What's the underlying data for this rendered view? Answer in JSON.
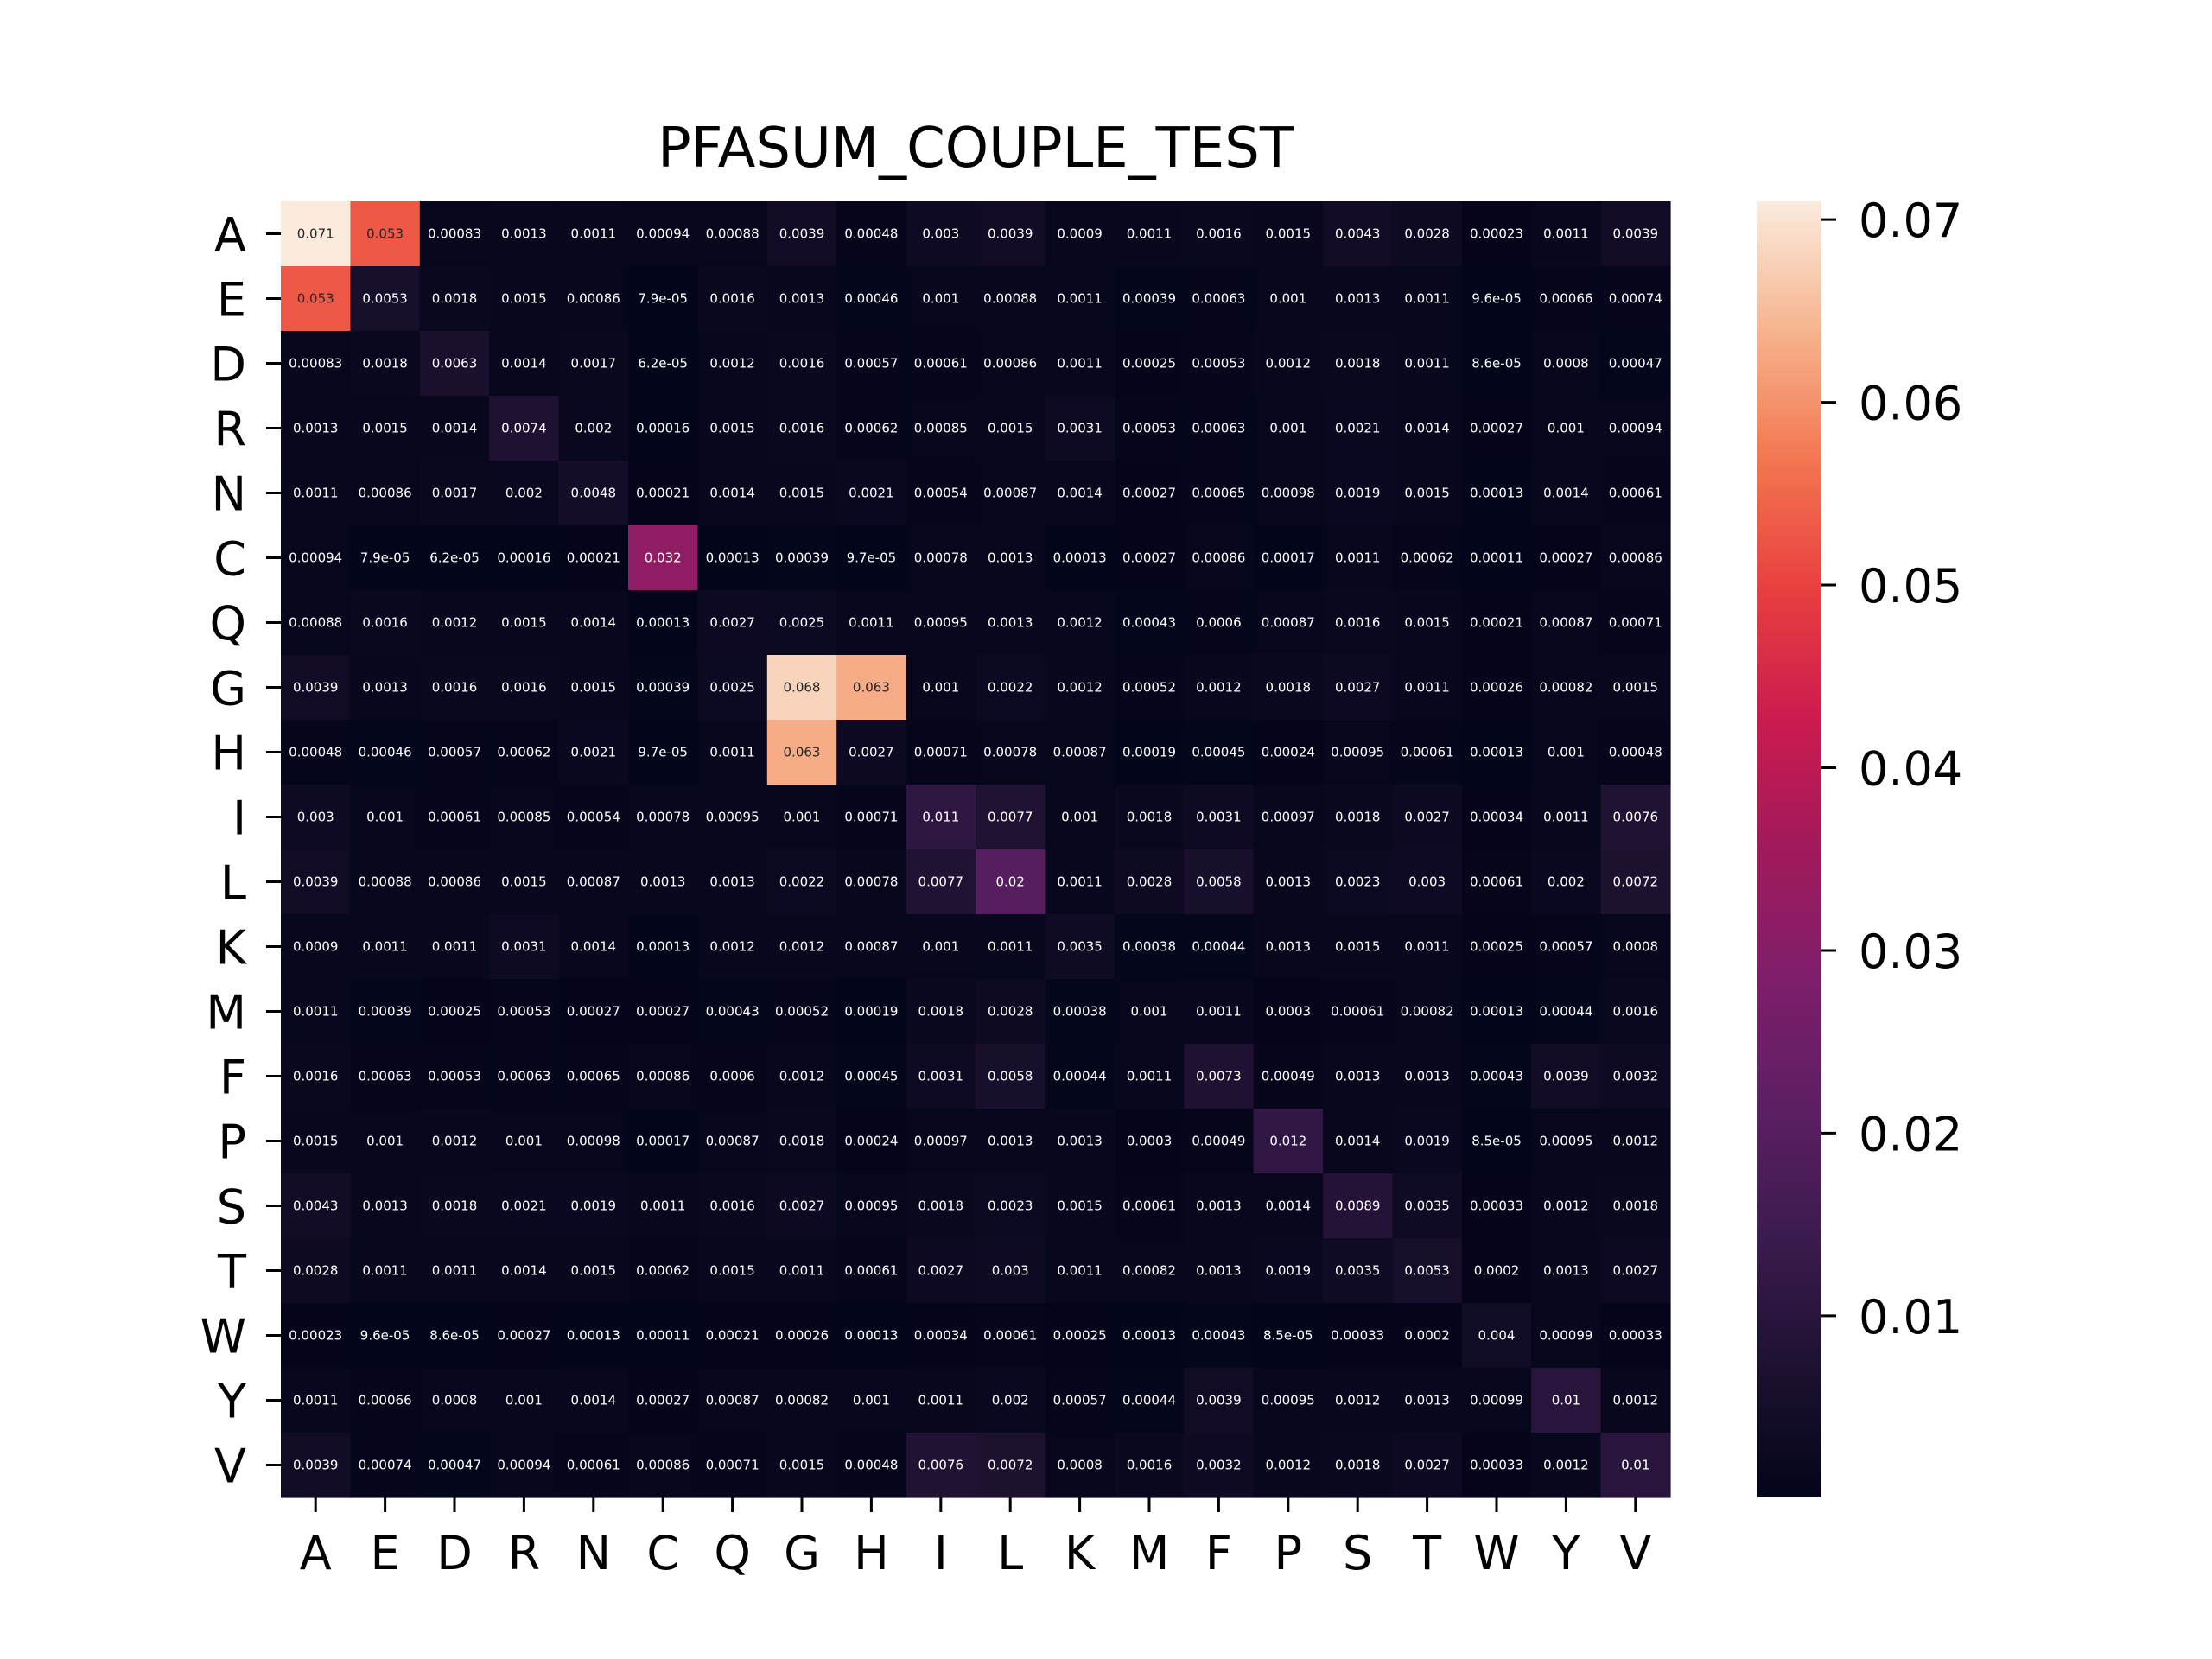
{
  "chart_data": {
    "type": "heatmap",
    "title": "PFASUM_COUPLE_TEST",
    "xlabel": "",
    "ylabel": "",
    "x_categories": [
      "A",
      "E",
      "D",
      "R",
      "N",
      "C",
      "Q",
      "G",
      "H",
      "I",
      "L",
      "K",
      "M",
      "F",
      "P",
      "S",
      "T",
      "W",
      "Y",
      "V"
    ],
    "y_categories": [
      "A",
      "E",
      "D",
      "R",
      "N",
      "C",
      "Q",
      "G",
      "H",
      "I",
      "L",
      "K",
      "M",
      "F",
      "P",
      "S",
      "T",
      "W",
      "Y",
      "V"
    ],
    "colorbar": {
      "colormap": "rocket",
      "ticks": [
        "0.01",
        "0.02",
        "0.03",
        "0.04",
        "0.05",
        "0.06",
        "0.07"
      ],
      "tick_values": [
        0.01,
        0.02,
        0.03,
        0.04,
        0.05,
        0.06,
        0.07
      ],
      "range": [
        6.2e-05,
        0.071
      ]
    },
    "values": [
      [
        "0.071",
        "0.053",
        "0.00083",
        "0.0013",
        "0.0011",
        "0.00094",
        "0.00088",
        "0.0039",
        "0.00048",
        "0.003",
        "0.0039",
        "0.0009",
        "0.0011",
        "0.0016",
        "0.0015",
        "0.0043",
        "0.0028",
        "0.00023",
        "0.0011",
        "0.0039"
      ],
      [
        "0.053",
        "0.0053",
        "0.0018",
        "0.0015",
        "0.00086",
        "7.9e-05",
        "0.0016",
        "0.0013",
        "0.00046",
        "0.001",
        "0.00088",
        "0.0011",
        "0.00039",
        "0.00063",
        "0.001",
        "0.0013",
        "0.0011",
        "9.6e-05",
        "0.00066",
        "0.00074"
      ],
      [
        "0.00083",
        "0.0018",
        "0.0063",
        "0.0014",
        "0.0017",
        "6.2e-05",
        "0.0012",
        "0.0016",
        "0.00057",
        "0.00061",
        "0.00086",
        "0.0011",
        "0.00025",
        "0.00053",
        "0.0012",
        "0.0018",
        "0.0011",
        "8.6e-05",
        "0.0008",
        "0.00047"
      ],
      [
        "0.0013",
        "0.0015",
        "0.0014",
        "0.0074",
        "0.002",
        "0.00016",
        "0.0015",
        "0.0016",
        "0.00062",
        "0.00085",
        "0.0015",
        "0.0031",
        "0.00053",
        "0.00063",
        "0.001",
        "0.0021",
        "0.0014",
        "0.00027",
        "0.001",
        "0.00094"
      ],
      [
        "0.0011",
        "0.00086",
        "0.0017",
        "0.002",
        "0.0048",
        "0.00021",
        "0.0014",
        "0.0015",
        "0.0021",
        "0.00054",
        "0.00087",
        "0.0014",
        "0.00027",
        "0.00065",
        "0.00098",
        "0.0019",
        "0.0015",
        "0.00013",
        "0.0014",
        "0.00061"
      ],
      [
        "0.00094",
        "7.9e-05",
        "6.2e-05",
        "0.00016",
        "0.00021",
        "0.032",
        "0.00013",
        "0.00039",
        "9.7e-05",
        "0.00078",
        "0.0013",
        "0.00013",
        "0.00027",
        "0.00086",
        "0.00017",
        "0.0011",
        "0.00062",
        "0.00011",
        "0.00027",
        "0.00086"
      ],
      [
        "0.00088",
        "0.0016",
        "0.0012",
        "0.0015",
        "0.0014",
        "0.00013",
        "0.0027",
        "0.0025",
        "0.0011",
        "0.00095",
        "0.0013",
        "0.0012",
        "0.00043",
        "0.0006",
        "0.00087",
        "0.0016",
        "0.0015",
        "0.00021",
        "0.00087",
        "0.00071"
      ],
      [
        "0.0039",
        "0.0013",
        "0.0016",
        "0.0016",
        "0.0015",
        "0.00039",
        "0.0025",
        "0.068",
        "0.063",
        "0.001",
        "0.0022",
        "0.0012",
        "0.00052",
        "0.0012",
        "0.0018",
        "0.0027",
        "0.0011",
        "0.00026",
        "0.00082",
        "0.0015"
      ],
      [
        "0.00048",
        "0.00046",
        "0.00057",
        "0.00062",
        "0.0021",
        "9.7e-05",
        "0.0011",
        "0.063",
        "0.0027",
        "0.00071",
        "0.00078",
        "0.00087",
        "0.00019",
        "0.00045",
        "0.00024",
        "0.00095",
        "0.00061",
        "0.00013",
        "0.001",
        "0.00048"
      ],
      [
        "0.003",
        "0.001",
        "0.00061",
        "0.00085",
        "0.00054",
        "0.00078",
        "0.00095",
        "0.001",
        "0.00071",
        "0.011",
        "0.0077",
        "0.001",
        "0.0018",
        "0.0031",
        "0.00097",
        "0.0018",
        "0.0027",
        "0.00034",
        "0.0011",
        "0.0076"
      ],
      [
        "0.0039",
        "0.00088",
        "0.00086",
        "0.0015",
        "0.00087",
        "0.0013",
        "0.0013",
        "0.0022",
        "0.00078",
        "0.0077",
        "0.02",
        "0.0011",
        "0.0028",
        "0.0058",
        "0.0013",
        "0.0023",
        "0.003",
        "0.00061",
        "0.002",
        "0.0072"
      ],
      [
        "0.0009",
        "0.0011",
        "0.0011",
        "0.0031",
        "0.0014",
        "0.00013",
        "0.0012",
        "0.0012",
        "0.00087",
        "0.001",
        "0.0011",
        "0.0035",
        "0.00038",
        "0.00044",
        "0.0013",
        "0.0015",
        "0.0011",
        "0.00025",
        "0.00057",
        "0.0008"
      ],
      [
        "0.0011",
        "0.00039",
        "0.00025",
        "0.00053",
        "0.00027",
        "0.00027",
        "0.00043",
        "0.00052",
        "0.00019",
        "0.0018",
        "0.0028",
        "0.00038",
        "0.001",
        "0.0011",
        "0.0003",
        "0.00061",
        "0.00082",
        "0.00013",
        "0.00044",
        "0.0016"
      ],
      [
        "0.0016",
        "0.00063",
        "0.00053",
        "0.00063",
        "0.00065",
        "0.00086",
        "0.0006",
        "0.0012",
        "0.00045",
        "0.0031",
        "0.0058",
        "0.00044",
        "0.0011",
        "0.0073",
        "0.00049",
        "0.0013",
        "0.0013",
        "0.00043",
        "0.0039",
        "0.0032"
      ],
      [
        "0.0015",
        "0.001",
        "0.0012",
        "0.001",
        "0.00098",
        "0.00017",
        "0.00087",
        "0.0018",
        "0.00024",
        "0.00097",
        "0.0013",
        "0.0013",
        "0.0003",
        "0.00049",
        "0.012",
        "0.0014",
        "0.0019",
        "8.5e-05",
        "0.00095",
        "0.0012"
      ],
      [
        "0.0043",
        "0.0013",
        "0.0018",
        "0.0021",
        "0.0019",
        "0.0011",
        "0.0016",
        "0.0027",
        "0.00095",
        "0.0018",
        "0.0023",
        "0.0015",
        "0.00061",
        "0.0013",
        "0.0014",
        "0.0089",
        "0.0035",
        "0.00033",
        "0.0012",
        "0.0018"
      ],
      [
        "0.0028",
        "0.0011",
        "0.0011",
        "0.0014",
        "0.0015",
        "0.00062",
        "0.0015",
        "0.0011",
        "0.00061",
        "0.0027",
        "0.003",
        "0.0011",
        "0.00082",
        "0.0013",
        "0.0019",
        "0.0035",
        "0.0053",
        "0.0002",
        "0.0013",
        "0.0027"
      ],
      [
        "0.00023",
        "9.6e-05",
        "8.6e-05",
        "0.00027",
        "0.00013",
        "0.00011",
        "0.00021",
        "0.00026",
        "0.00013",
        "0.00034",
        "0.00061",
        "0.00025",
        "0.00013",
        "0.00043",
        "8.5e-05",
        "0.00033",
        "0.0002",
        "0.004",
        "0.00099",
        "0.00033"
      ],
      [
        "0.0011",
        "0.00066",
        "0.0008",
        "0.001",
        "0.0014",
        "0.00027",
        "0.00087",
        "0.00082",
        "0.001",
        "0.0011",
        "0.002",
        "0.00057",
        "0.00044",
        "0.0039",
        "0.00095",
        "0.0012",
        "0.0013",
        "0.00099",
        "0.01",
        "0.0012"
      ],
      [
        "0.0039",
        "0.00074",
        "0.00047",
        "0.00094",
        "0.00061",
        "0.00086",
        "0.00071",
        "0.0015",
        "0.00048",
        "0.0076",
        "0.0072",
        "0.0008",
        "0.0016",
        "0.0032",
        "0.0012",
        "0.0018",
        "0.0027",
        "0.00033",
        "0.0012",
        "0.01"
      ]
    ]
  }
}
